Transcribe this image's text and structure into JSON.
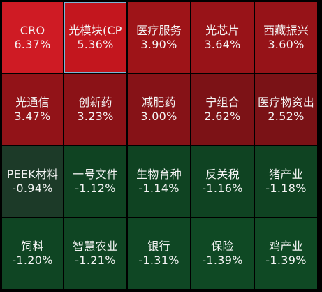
{
  "heatmap": {
    "tiles": [
      {
        "name": "CRO",
        "change": "6.37%",
        "color": "#cf1b24"
      },
      {
        "name": "光模块(CP",
        "change": "5.36%",
        "color": "#c3161e",
        "selected": true
      },
      {
        "name": "医疗服务",
        "change": "3.90%",
        "color": "#9e1418"
      },
      {
        "name": "光芯片",
        "change": "3.64%",
        "color": "#981318"
      },
      {
        "name": "西藏振兴",
        "change": "3.60%",
        "color": "#961318"
      },
      {
        "name": "光通信",
        "change": "3.47%",
        "color": "#921318"
      },
      {
        "name": "创新药",
        "change": "3.23%",
        "color": "#8b1217"
      },
      {
        "name": "减肥药",
        "change": "3.00%",
        "color": "#861217"
      },
      {
        "name": "宁组合",
        "change": "2.62%",
        "color": "#7c1216"
      },
      {
        "name": "医疗物资出",
        "change": "2.52%",
        "color": "#7a1216"
      },
      {
        "name": "PEEK材料",
        "change": "-0.94%",
        "color": "#1c3a28"
      },
      {
        "name": "一号文件",
        "change": "-1.12%",
        "color": "#0f4322"
      },
      {
        "name": "生物育种",
        "change": "-1.14%",
        "color": "#0f4322"
      },
      {
        "name": "反关税",
        "change": "-1.16%",
        "color": "#0f4322"
      },
      {
        "name": "猪产业",
        "change": "-1.18%",
        "color": "#0f4322"
      },
      {
        "name": "饲料",
        "change": "-1.20%",
        "color": "#0f4523"
      },
      {
        "name": "智慧农业",
        "change": "-1.21%",
        "color": "#0f4523"
      },
      {
        "name": "银行",
        "change": "-1.31%",
        "color": "#0f4724"
      },
      {
        "name": "保险",
        "change": "-1.39%",
        "color": "#0f4924"
      },
      {
        "name": "鸡产业",
        "change": "-1.39%",
        "color": "#0f4924"
      }
    ]
  }
}
